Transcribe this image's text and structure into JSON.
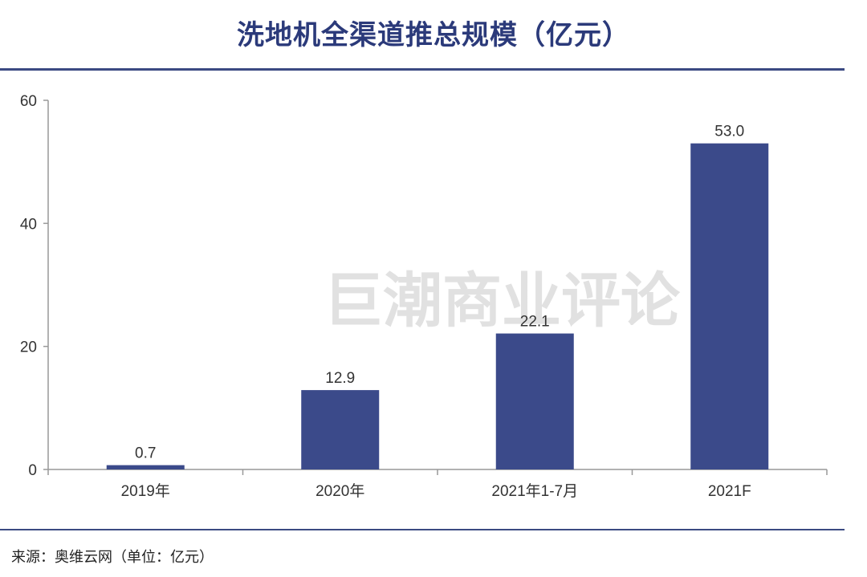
{
  "header": {
    "title": "洗地机全渠道推总规模（亿元）"
  },
  "footer": {
    "source": "来源：奥维云网（单位：亿元）"
  },
  "watermark": "巨潮商业评论",
  "colors": {
    "bar": "#3b4a8a",
    "axis": "#999999",
    "title": "#2b3a7a"
  },
  "chart_data": {
    "type": "bar",
    "title": "洗地机全渠道推总规模（亿元）",
    "categories": [
      "2019年",
      "2020年",
      "2021年1-7月",
      "2021F"
    ],
    "values": [
      0.7,
      12.9,
      22.1,
      53.0
    ],
    "value_labels": [
      "0.7",
      "12.9",
      "22.1",
      "53.0"
    ],
    "yticks": [
      0,
      20,
      40,
      60
    ],
    "ylim": [
      0,
      60
    ],
    "xlabel": "",
    "ylabel": "",
    "grid": false,
    "legend": "none"
  }
}
